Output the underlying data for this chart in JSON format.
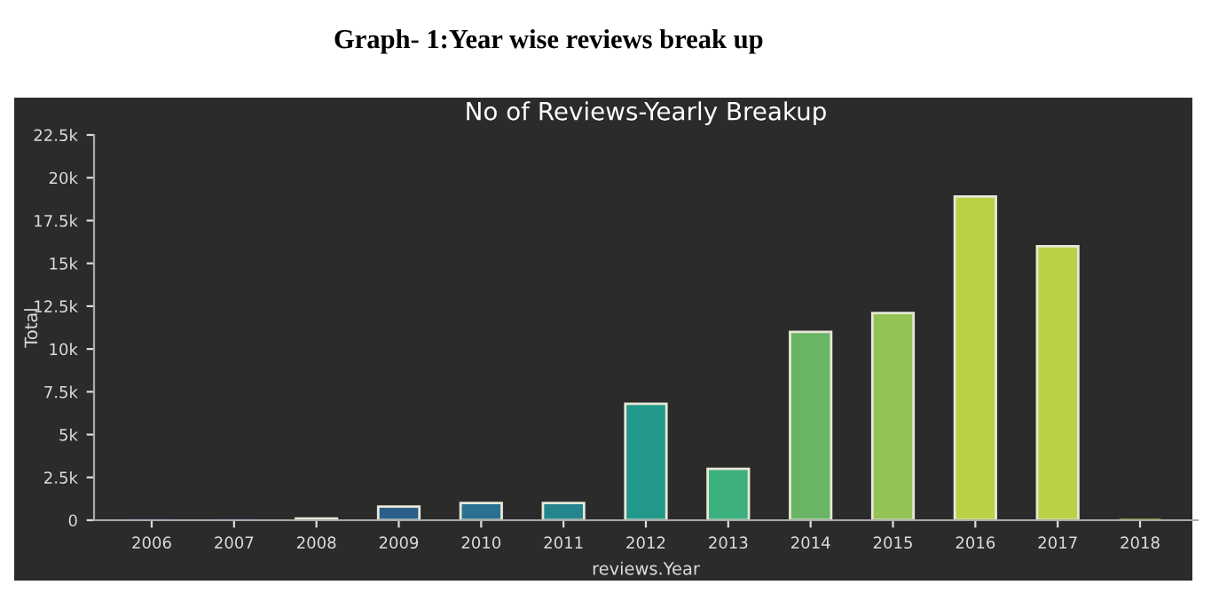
{
  "chart_data": {
    "type": "bar",
    "title": "No of Reviews-Yearly Breakup",
    "xlabel": "reviews.Year",
    "ylabel": "Total",
    "annotations": [
      "Graph- 1:Year wise reviews break up"
    ],
    "categories": [
      "2006",
      "2007",
      "2008",
      "2009",
      "2010",
      "2011",
      "2012",
      "2013",
      "2014",
      "2015",
      "2016",
      "2017",
      "2018"
    ],
    "values": [
      0,
      0,
      100,
      800,
      1000,
      1000,
      6800,
      3000,
      11000,
      12100,
      18900,
      16000,
      0
    ],
    "colors": [
      "#2f3f6e",
      "#30446f",
      "#31506f",
      "#2b5f8a",
      "#2a7191",
      "#25858e",
      "#22998a",
      "#3bb07c",
      "#6ab565",
      "#93c355",
      "#bcd045",
      "#bcd045",
      "#dcdc30"
    ],
    "ylim": [
      0,
      22500
    ],
    "yticks": [
      0,
      {
        "value": 2500,
        "label": "2.5k"
      },
      {
        "value": 5000,
        "label": "5k"
      },
      {
        "value": 7500,
        "label": "7.5k"
      },
      {
        "value": 10000,
        "label": "10k"
      },
      {
        "value": 12500,
        "label": "12.5k"
      },
      {
        "value": 15000,
        "label": "15k"
      },
      {
        "value": 17500,
        "label": "17.5k"
      },
      {
        "value": 20000,
        "label": "20k"
      },
      {
        "value": 22500,
        "label": "22.5k"
      }
    ],
    "grid": false,
    "legend": false
  }
}
